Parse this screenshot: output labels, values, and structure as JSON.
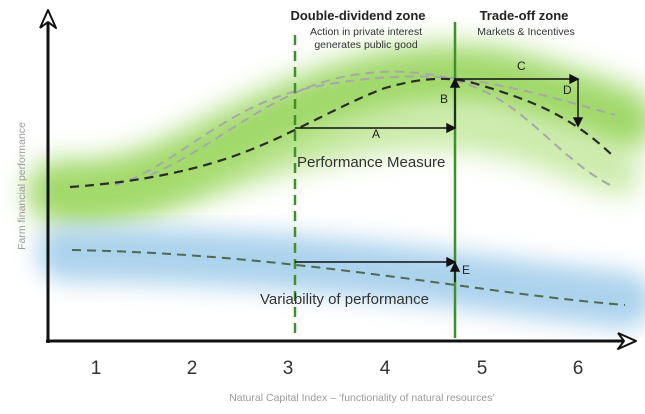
{
  "axes": {
    "x_label": "Natural Capital Index – ‘functionality of natural resources’",
    "y_label": "Farm financial performance",
    "x_ticks": [
      "1",
      "2",
      "3",
      "4",
      "5",
      "6"
    ]
  },
  "zones": {
    "double_dividend": {
      "title": "Double-dividend zone",
      "subtitle_line1": "Action in private interest",
      "subtitle_line2": "generates public good"
    },
    "trade_off": {
      "title": "Trade-off zone",
      "subtitle": "Markets & Incentives"
    }
  },
  "bands": {
    "performance": {
      "label": "Performance Measure",
      "color": "#8fd14f"
    },
    "variability": {
      "label": "Variability of performance",
      "color": "#9ecbea"
    }
  },
  "markers": {
    "A": "A",
    "B": "B",
    "C": "C",
    "D": "D",
    "E": "E"
  },
  "colors": {
    "zone_line": "#3f8f2a",
    "curve_dark": "#2b2b2b",
    "curve_light": "#a8a8a8",
    "variability_curve": "#4f6a4f"
  }
}
